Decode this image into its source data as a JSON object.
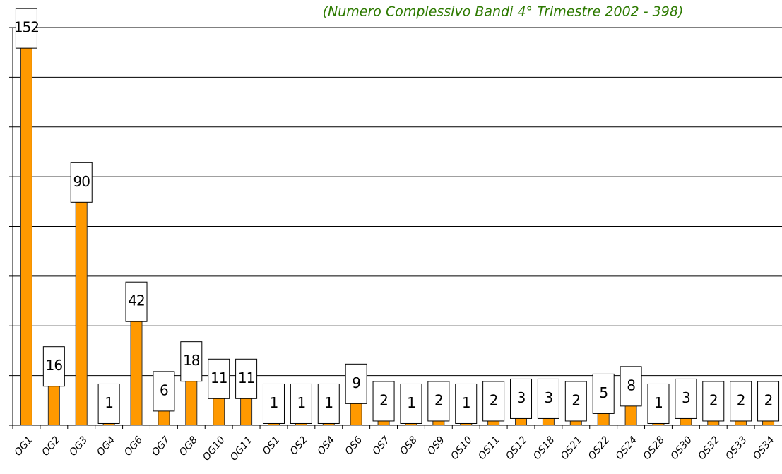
{
  "chart_data": {
    "type": "bar",
    "title": "(Numero Complessivo Bandi 4° Trimestre 2002 -  398)",
    "categories": [
      "OG1",
      "OG2",
      "OG3",
      "OG4",
      "OG6",
      "OG7",
      "OG8",
      "OG10",
      "OG11",
      "OS1",
      "OS2",
      "OS4",
      "OS6",
      "OS7",
      "OS8",
      "OS9",
      "OS10",
      "OS11",
      "OS12",
      "OS18",
      "OS21",
      "OS22",
      "OS24",
      "OS28",
      "OS30",
      "OS32",
      "OS33",
      "OS34"
    ],
    "values": [
      152,
      16,
      90,
      1,
      42,
      6,
      18,
      11,
      11,
      1,
      1,
      1,
      9,
      2,
      1,
      2,
      1,
      2,
      3,
      3,
      2,
      5,
      8,
      1,
      3,
      2,
      2,
      2
    ],
    "color": "#ff9900",
    "ylim": [
      0,
      160
    ],
    "yticks": [
      0,
      20,
      40,
      60,
      80,
      100,
      120,
      140,
      160
    ],
    "grid": true
  }
}
